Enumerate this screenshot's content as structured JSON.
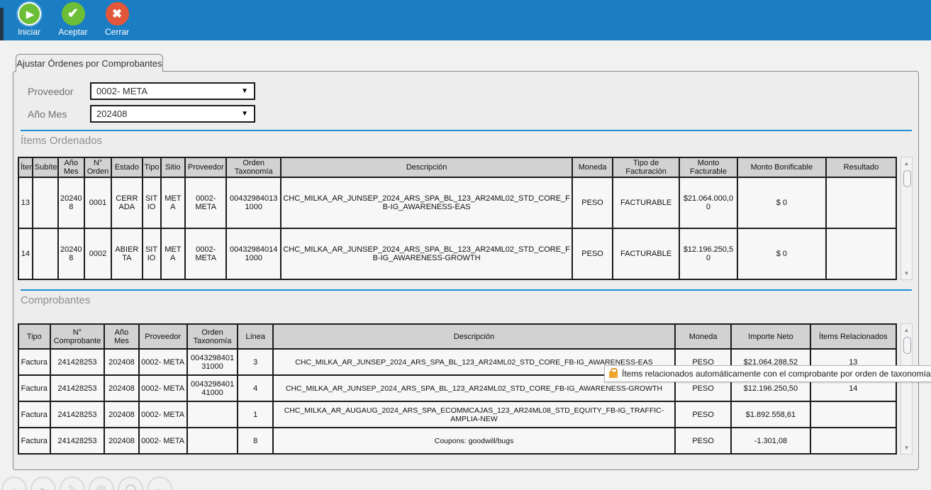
{
  "toolbar": {
    "buttons": [
      {
        "label": "Iniciar",
        "icon": "play-icon"
      },
      {
        "label": "Aceptar",
        "icon": "check-icon"
      },
      {
        "label": "Cerrar",
        "icon": "close-icon"
      }
    ]
  },
  "tab": {
    "label": "Ajustar Órdenes por Comprobantes"
  },
  "filters": {
    "proveedor_label": "Proveedor",
    "proveedor_value": "0002- META",
    "anio_mes_label": "Año Mes",
    "anio_mes_value": "202408"
  },
  "items_ordenados": {
    "title": "Ítems Ordenados",
    "columns": [
      "Ítem",
      "Subítem",
      "Año Mes",
      "N° Orden",
      "Estado",
      "Tipo",
      "Sitio",
      "Proveedor",
      "Orden Taxonomía",
      "Descripción",
      "Moneda",
      "Tipo de Facturación",
      "Monto Facturable",
      "Monto Bonificable",
      "Resultado"
    ],
    "rows": [
      [
        "13",
        "",
        "202408",
        "0001",
        "CERRADA",
        "SITIO",
        "META",
        "0002- META",
        "004329840131000",
        "CHC_MILKA_AR_JUNSEP_2024_ARS_SPA_BL_123_AR24ML02_STD_CORE_FB-IG_AWARENESS-EAS",
        "PESO",
        "FACTURABLE",
        "$21.064.000,00",
        "$ 0",
        ""
      ],
      [
        "14",
        "",
        "202408",
        "0002",
        "ABIERTA",
        "SITIO",
        "META",
        "0002- META",
        "004329840141000",
        "CHC_MILKA_AR_JUNSEP_2024_ARS_SPA_BL_123_AR24ML02_STD_CORE_FB-IG_AWARENESS-GROWTH",
        "PESO",
        "FACTURABLE",
        "$12.196.250,50",
        "$ 0",
        ""
      ]
    ]
  },
  "comprobantes": {
    "title": "Comprobantes",
    "columns": [
      "Tipo",
      "N° Comprobante",
      "Año Mes",
      "Proveedor",
      "Orden Taxonomía",
      "Línea",
      "Descripción",
      "Moneda",
      "Importe Neto",
      "Ítems Relacionados"
    ],
    "rows": [
      [
        "Factura",
        "241428253",
        "202408",
        "0002- META",
        "004329840131000",
        "3",
        "CHC_MILKA_AR_JUNSEP_2024_ARS_SPA_BL_123_AR24ML02_STD_CORE_FB-IG_AWARENESS-EAS",
        "PESO",
        "$21.064.288,52",
        "13"
      ],
      [
        "Factura",
        "241428253",
        "202408",
        "0002- META",
        "004329840141000",
        "4",
        "CHC_MILKA_AR_JUNSEP_2024_ARS_SPA_BL_123_AR24ML02_STD_CORE_FB-IG_AWARENESS-GROWTH",
        "PESO",
        "$12.196.250,50",
        "14"
      ],
      [
        "Factura",
        "241428253",
        "202408",
        "0002- META",
        "",
        "1",
        "CHC_MILKA_AR_AUGAUG_2024_ARS_SPA_ECOMMCAJAS_123_AR24ML08_STD_EQUITY_FB-IG_TRAFFIC-AMPLIA-NEW",
        "PESO",
        "$1.892.558,61",
        ""
      ],
      [
        "Factura",
        "241428253",
        "202408",
        "0002- META",
        "",
        "8",
        "Coupons: goodwill/bugs",
        "PESO",
        "-1.301,08",
        ""
      ]
    ]
  },
  "tooltip": {
    "icon": "lock-icon",
    "text": "Ítems relacionados automáticamente con el comprobante por orden de taxonomía."
  },
  "colors": {
    "toolbar_blue": "#1b7dc2",
    "section_line_blue": "#1f8dd6",
    "button_green": "#6cbe36",
    "button_red": "#e2573a",
    "lock_orange": "#f0a62f",
    "table_header_gray": "#d2d2d2"
  }
}
